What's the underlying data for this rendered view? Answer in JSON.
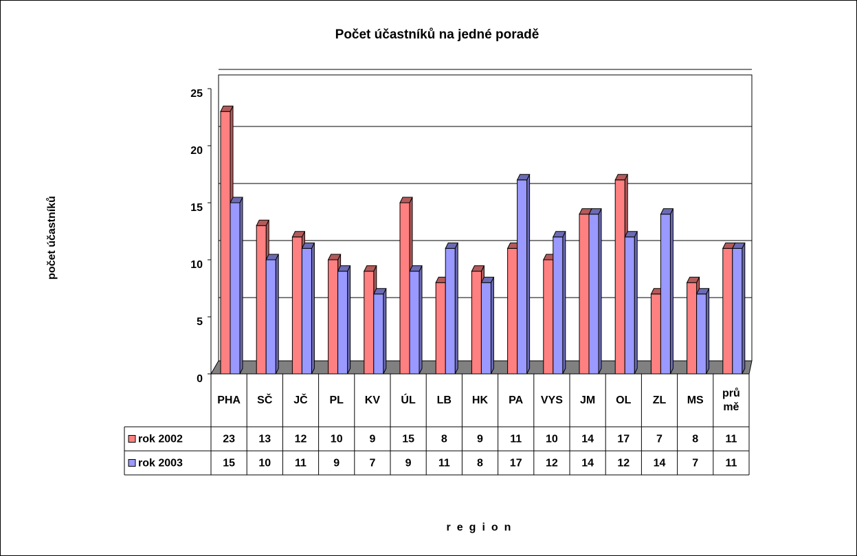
{
  "chart_data": {
    "type": "bar3d",
    "title": "Počet účastníků na jedné poradě",
    "y_label": "počet účastníků",
    "x_label": "region",
    "categories": [
      "PHA",
      "SČ",
      "JČ",
      "PL",
      "KV",
      "ÚL",
      "LB",
      "HK",
      "PA",
      "VYS",
      "JM",
      "OL",
      "ZL",
      "MS",
      "prů mě"
    ],
    "series": [
      {
        "name": "rok 2002",
        "color": "#ff8080",
        "values": [
          23,
          13,
          12,
          10,
          9,
          15,
          8,
          9,
          11,
          10,
          14,
          17,
          7,
          8,
          11
        ]
      },
      {
        "name": "rok 2003",
        "color": "#9999ff",
        "values": [
          15,
          10,
          11,
          9,
          7,
          9,
          11,
          8,
          17,
          12,
          14,
          12,
          14,
          7,
          11
        ]
      }
    ],
    "ylim": [
      0,
      25
    ],
    "yticks": [
      0,
      5,
      10,
      15,
      20,
      25
    ],
    "grid": true,
    "data_table": true
  }
}
